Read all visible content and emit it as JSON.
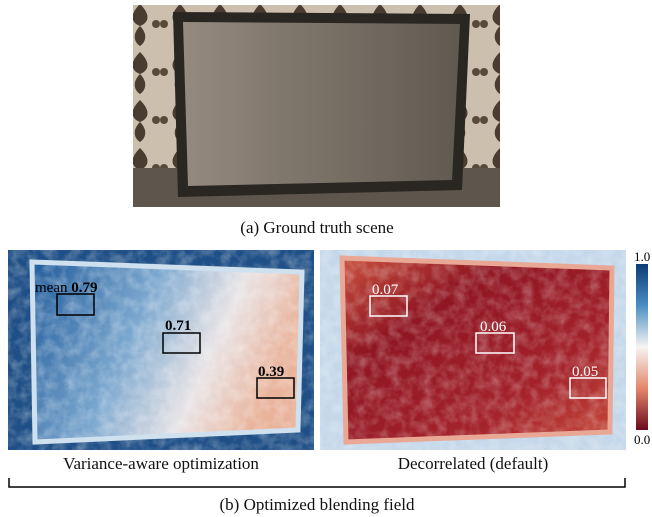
{
  "figure": {
    "top_caption": "(a) Ground truth scene",
    "left_panel": {
      "caption": "Variance-aware optimization",
      "regions": [
        {
          "prefix": "mean",
          "value": "0.79"
        },
        {
          "value": "0.71"
        },
        {
          "value": "0.39"
        }
      ]
    },
    "right_panel": {
      "caption": "Decorrelated (default)",
      "regions": [
        {
          "value": "0.07"
        },
        {
          "value": "0.06"
        },
        {
          "value": "0.05"
        }
      ]
    },
    "colorbar": {
      "max_label": "1.0",
      "min_label": "0.0"
    },
    "bottom_caption": "(b) Optimized blending field"
  }
}
